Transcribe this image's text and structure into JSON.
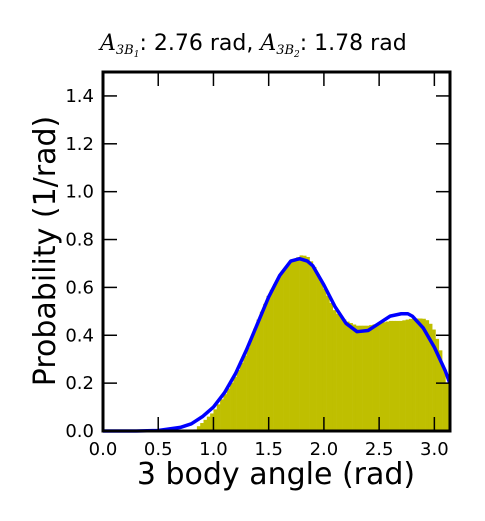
{
  "chart_data": {
    "type": "bar",
    "title": {
      "symbol_1": "A",
      "sub_1": "3B",
      "subsub_1": "1",
      "text_1": ": 2.76 rad, ",
      "symbol_2": "A",
      "sub_2": "3B",
      "subsub_2": "2",
      "text_2": ": 1.78 rad"
    },
    "xlabel": "3 body angle (rad)",
    "ylabel": "Probability (1/rad)",
    "xlim": [
      0,
      3.14159
    ],
    "ylim": [
      0,
      1.5
    ],
    "xticks": [
      "0.0",
      "0.5",
      "1.0",
      "1.5",
      "2.0",
      "2.5",
      "3.0"
    ],
    "yticks": [
      "0.0",
      "0.2",
      "0.4",
      "0.6",
      "0.8",
      "1.0",
      "1.2",
      "1.4"
    ],
    "grid": false,
    "colors": {
      "histogram": "#bfbf00",
      "fit_curve": "#0000ff",
      "axes": "#000000"
    },
    "histogram": {
      "bin_width": 0.03,
      "x": [
        0.82,
        1.0,
        1.1,
        1.2,
        1.3,
        1.4,
        1.5,
        1.6,
        1.7,
        1.8,
        1.85,
        1.9,
        2.0,
        2.1,
        2.2,
        2.3,
        2.4,
        2.5,
        2.6,
        2.7,
        2.8,
        2.9,
        2.95,
        3.0,
        3.05,
        3.1,
        3.14
      ],
      "y": [
        0.0,
        0.08,
        0.15,
        0.23,
        0.33,
        0.46,
        0.57,
        0.65,
        0.71,
        0.735,
        0.73,
        0.7,
        0.6,
        0.5,
        0.46,
        0.44,
        0.44,
        0.45,
        0.46,
        0.46,
        0.47,
        0.47,
        0.46,
        0.42,
        0.35,
        0.22,
        0.17
      ]
    },
    "fit_curve": {
      "x": [
        0.0,
        0.3,
        0.5,
        0.7,
        0.8,
        0.9,
        1.0,
        1.1,
        1.2,
        1.3,
        1.4,
        1.5,
        1.6,
        1.7,
        1.78,
        1.85,
        1.9,
        2.0,
        2.1,
        2.2,
        2.3,
        2.4,
        2.5,
        2.6,
        2.7,
        2.76,
        2.8,
        2.9,
        3.0,
        3.1,
        3.14
      ],
      "y": [
        0.0,
        0.0,
        0.002,
        0.015,
        0.03,
        0.06,
        0.1,
        0.16,
        0.24,
        0.34,
        0.45,
        0.56,
        0.65,
        0.71,
        0.72,
        0.71,
        0.69,
        0.61,
        0.52,
        0.45,
        0.415,
        0.42,
        0.45,
        0.48,
        0.49,
        0.49,
        0.48,
        0.43,
        0.35,
        0.25,
        0.2
      ]
    }
  }
}
